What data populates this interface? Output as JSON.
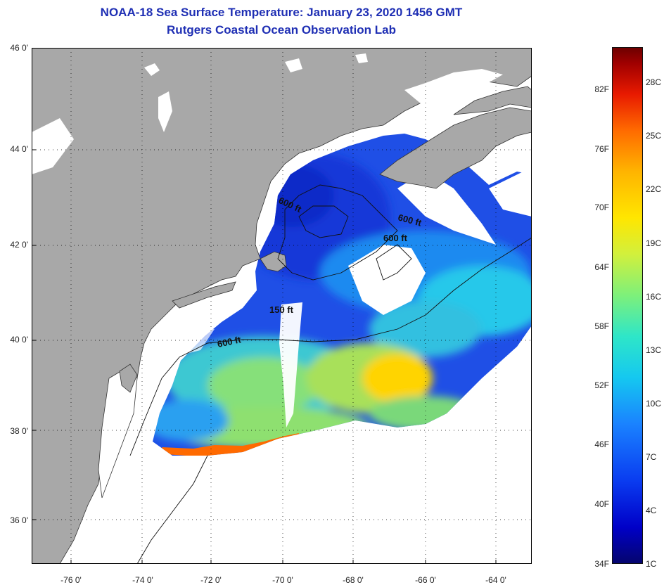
{
  "header": {
    "title": "NOAA-18 Sea Surface Temperature:  January 23, 2020 1456 GMT",
    "subtitle": "Rutgers Coastal Ocean Observation Lab"
  },
  "axes": {
    "lat_labels": [
      "46 0'",
      "44 0'",
      "42 0'",
      "40 0'",
      "38 0'",
      "36 0'"
    ],
    "lon_labels": [
      "-76 0'",
      "-74 0'",
      "-72 0'",
      "-70 0'",
      "-68 0'",
      "-66 0'",
      "-64 0'"
    ]
  },
  "map": {
    "contour_labels": [
      "600 ft",
      "600 ft",
      "600 ft",
      "150 ft",
      "600 ft"
    ]
  },
  "colorbar": {
    "fahrenheit": [
      "82F",
      "76F",
      "70F",
      "64F",
      "58F",
      "52F",
      "46F",
      "40F",
      "34F"
    ],
    "celsius": [
      "28C",
      "25C",
      "22C",
      "19C",
      "16C",
      "13C",
      "10C",
      "7C",
      "4C",
      "1C"
    ]
  },
  "colors": {
    "title": "#1f2fb4",
    "land": "#a8a8a8",
    "cloud": "#ffffff",
    "cold_water": "#1f4fe6",
    "warm_water": "#ffd400"
  }
}
